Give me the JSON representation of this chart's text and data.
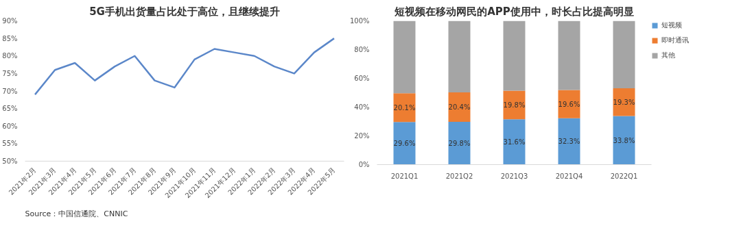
{
  "chart_data": [
    {
      "type": "line",
      "title": "5G手机出货量占比处于高位，且继续提升",
      "categories": [
        "2021年2月",
        "2021年3月",
        "2021年4月",
        "2021年5月",
        "2021年6月",
        "2021年7月",
        "2021年8月",
        "2021年9月",
        "2021年10月",
        "2021年11月",
        "2021年12月",
        "2022年1月",
        "2022年2月",
        "2022年3月",
        "2022年4月",
        "2022年5月"
      ],
      "series": [
        {
          "color": "#5b87c9",
          "values": [
            69,
            76,
            78,
            73,
            77,
            80,
            73,
            71,
            79,
            82,
            81,
            80,
            77,
            75,
            81,
            85
          ]
        }
      ],
      "ylim": [
        50,
        90
      ],
      "yticks": [
        {
          "value": 50,
          "label": "50%"
        },
        {
          "value": 55,
          "label": "55%"
        },
        {
          "value": 60,
          "label": "60%"
        },
        {
          "value": 65,
          "label": "65%"
        },
        {
          "value": 70,
          "label": "70%"
        },
        {
          "value": 75,
          "label": "75%"
        },
        {
          "value": 80,
          "label": "80%"
        },
        {
          "value": 85,
          "label": "85%"
        },
        {
          "value": 90,
          "label": "90%"
        }
      ],
      "grid": false,
      "annotations": [
        "Source：中国信通院、CNNIC"
      ]
    },
    {
      "type": "bar",
      "stacked": true,
      "title": "短视频在移动网民的APP使用中，时长占比提高明显",
      "categories": [
        "2021Q1",
        "2021Q2",
        "2021Q3",
        "2021Q4",
        "2022Q1"
      ],
      "series": [
        {
          "name": "短视频",
          "color": "#5b9bd5",
          "values": [
            29.6,
            29.8,
            31.6,
            32.3,
            33.8
          ],
          "value_labels": [
            "29.6%",
            "29.8%",
            "31.6%",
            "32.3%",
            "33.8%"
          ]
        },
        {
          "name": "即时通讯",
          "color": "#ed7d31",
          "values": [
            20.1,
            20.4,
            19.8,
            19.6,
            19.3
          ],
          "value_labels": [
            "20.1%",
            "20.4%",
            "19.8%",
            "19.6%",
            "19.3%"
          ]
        },
        {
          "name": "其他",
          "color": "#a5a5a5",
          "values": [
            50.3,
            49.8,
            48.6,
            48.1,
            46.9
          ]
        }
      ],
      "ylim": [
        0,
        100
      ],
      "yticks": [
        {
          "value": 0,
          "label": "0%"
        },
        {
          "value": 20,
          "label": "20%"
        },
        {
          "value": 40,
          "label": "40%"
        },
        {
          "value": 60,
          "label": "60%"
        },
        {
          "value": 80,
          "label": "80%"
        },
        {
          "value": 100,
          "label": "100%"
        }
      ],
      "grid": false,
      "legend": "right"
    }
  ]
}
